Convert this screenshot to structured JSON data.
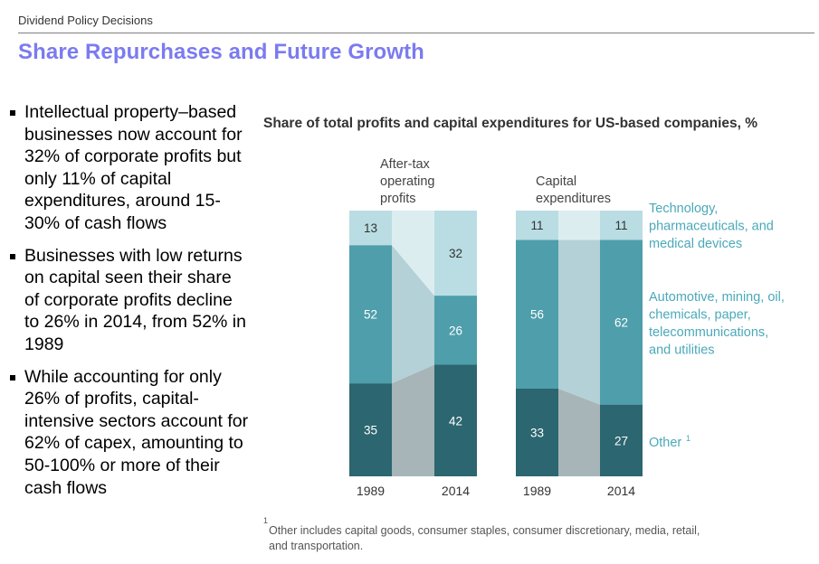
{
  "header": {
    "section": "Dividend Policy Decisions",
    "title": "Share Repurchases and Future Growth"
  },
  "bullets": [
    "Intellectual property–based businesses now account for 32% of corporate profits but only 11% of capital expenditures, around 15-30% of cash flows",
    "Businesses with low returns on capital seen their share of corporate profits decline to 26% in 2014, from 52% in 1989",
    "While accounting for only 26% of profits, capital-intensive sectors account for 62% of capex, amounting to 50-100% or more of their cash flows"
  ],
  "colors": {
    "title": "#7b7bf0",
    "technology": "#b9dde3",
    "capital_intensive": "#4e9eab",
    "other": "#2c6670",
    "band_light": "#dcedf0",
    "band_mid": "#b3d1d7",
    "band_dark": "#a7b5b8",
    "legend_text": "#4aa9b9"
  },
  "chart_data": {
    "type": "bar",
    "stacked": true,
    "title": "Share of total profits and capital expenditures for US-based companies, %",
    "units": "%",
    "ylim": [
      0,
      100
    ],
    "groups": [
      {
        "name": "After-tax operating profits",
        "label_lines": [
          "After-tax",
          "operating",
          "profits"
        ],
        "categories": [
          "1989",
          "2014"
        ],
        "series": [
          {
            "name": "Other",
            "values": [
              35,
              42
            ]
          },
          {
            "name": "Automotive, mining, oil, chemicals, paper, telecommunications, and utilities",
            "values": [
              52,
              26
            ]
          },
          {
            "name": "Technology, pharmaceuticals, and medical devices",
            "values": [
              13,
              32
            ]
          }
        ]
      },
      {
        "name": "Capital expenditures",
        "label_lines": [
          "Capital",
          "expenditures"
        ],
        "categories": [
          "1989",
          "2014"
        ],
        "series": [
          {
            "name": "Other",
            "values": [
              33,
              27
            ]
          },
          {
            "name": "Automotive, mining, oil, chemicals, paper, telecommunications, and utilities",
            "values": [
              56,
              62
            ]
          },
          {
            "name": "Technology, pharmaceuticals, and medical devices",
            "values": [
              11,
              11
            ]
          }
        ]
      }
    ],
    "legend": [
      {
        "key": "technology",
        "lines": [
          "Technology,",
          "pharmaceuticals, and",
          "medical devices"
        ]
      },
      {
        "key": "capital_intensive",
        "lines": [
          "Automotive, mining, oil,",
          "chemicals, paper,",
          "telecommunications,",
          "and utilities"
        ]
      },
      {
        "key": "other",
        "lines": [
          "Other"
        ],
        "sup": "1"
      }
    ],
    "footnote_mark": "1",
    "footnote_lines": [
      "Other includes capital goods, consumer staples, consumer discretionary, media, retail,",
      "and transportation."
    ]
  }
}
